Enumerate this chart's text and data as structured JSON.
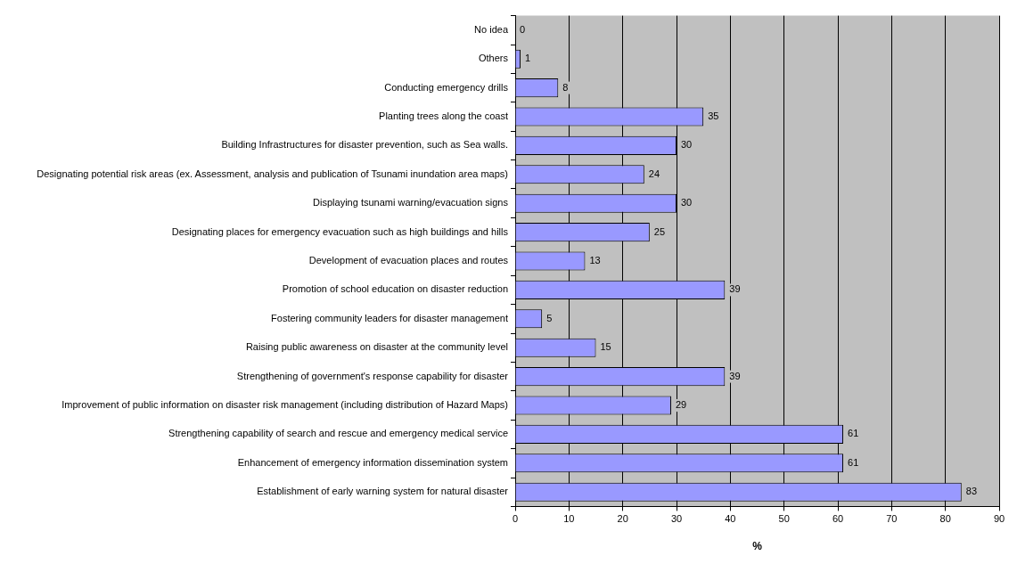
{
  "chart_data": {
    "type": "bar",
    "orientation": "horizontal",
    "xlabel": "%",
    "categories": [
      "No idea",
      "Others",
      "Conducting emergency drills",
      "Planting trees along the coast",
      "Building Infrastructures for disaster prevention, such as Sea walls.",
      "Designating potential risk areas (ex. Assessment, analysis and publication of Tsunami inundation area maps)",
      "Displaying tsunami warning/evacuation signs",
      "Designating places for emergency evacuation such as high buildings and hills",
      "Development of evacuation places and routes",
      "Promotion of school education on disaster reduction",
      "Fostering community leaders for disaster management",
      "Raising public awareness on disaster at the community level",
      "Strengthening of government's response capability for disaster",
      "Improvement of public information on disaster risk management (including distribution of Hazard Maps)",
      "Strengthening capability of search and rescue and emergency medical service",
      "Enhancement of emergency information dissemination system",
      "Establishment of early warning system for natural disaster"
    ],
    "values": [
      0,
      1,
      8,
      35,
      30,
      24,
      30,
      25,
      13,
      39,
      5,
      15,
      39,
      29,
      61,
      61,
      83
    ],
    "color": "#9999ff",
    "xlim": [
      0,
      90
    ],
    "xticks": [
      0,
      10,
      20,
      30,
      40,
      50,
      60,
      70,
      80,
      90
    ],
    "grid": "x",
    "legend": false,
    "data_labels": true
  }
}
